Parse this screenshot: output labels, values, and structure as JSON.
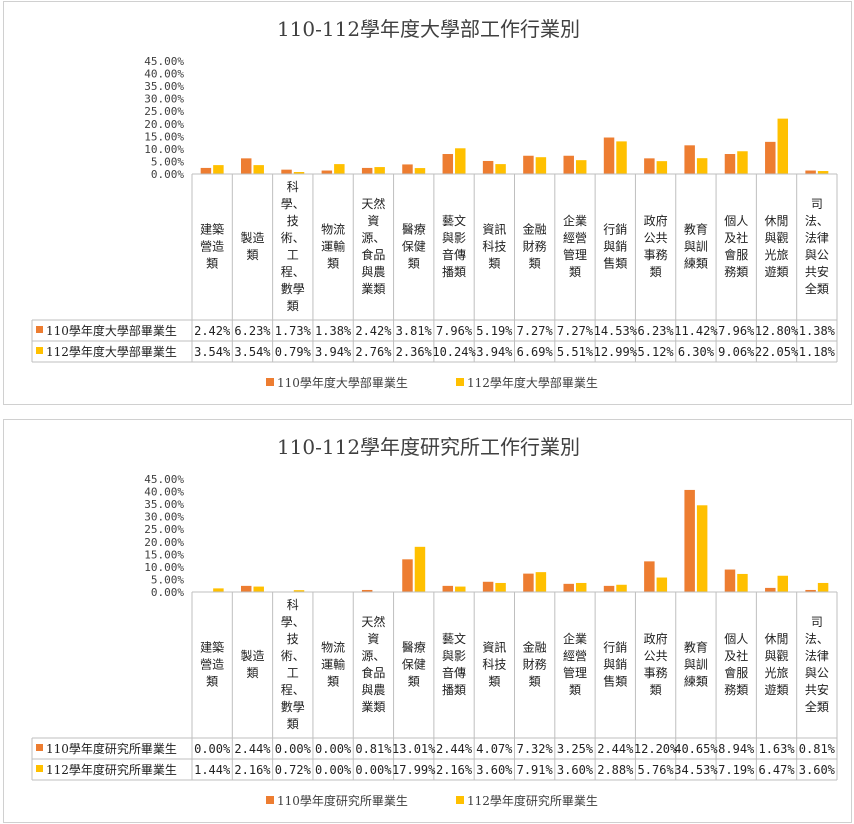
{
  "chart_data": [
    {
      "type": "bar",
      "title": "110-112學年度大學部工作行業別",
      "ylim": [
        0,
        45
      ],
      "yticks": [
        "0.00%",
        "5.00%",
        "10.00%",
        "15.00%",
        "20.00%",
        "25.00%",
        "30.00%",
        "35.00%",
        "40.00%",
        "45.00%"
      ],
      "categories": [
        "建築營造類",
        "製造類",
        "科學、技術、工程、數學類",
        "物流運輸類",
        "天然資源、食品與農業類",
        "醫療保健類",
        "藝文與影音傳播類",
        "資訊科技類",
        "金融財務類",
        "企業經營管理類",
        "行銷與銷售類",
        "政府公共事務類",
        "教育與訓練類",
        "個人及社會服務類",
        "休閒與觀光旅遊類",
        "司法、法律與公共安全類"
      ],
      "series": [
        {
          "name": "110學年度大學部畢業生",
          "color": "#ED7D31",
          "values": [
            2.42,
            6.23,
            1.73,
            1.38,
            2.42,
            3.81,
            7.96,
            5.19,
            7.27,
            7.27,
            14.53,
            6.23,
            11.42,
            7.96,
            12.8,
            1.38
          ],
          "labels": [
            "2.42%",
            "6.23%",
            "1.73%",
            "1.38%",
            "2.42%",
            "3.81%",
            "7.96%",
            "5.19%",
            "7.27%",
            "7.27%",
            "14.53%",
            "6.23%",
            "11.42%",
            "7.96%",
            "12.80%",
            "1.38%"
          ]
        },
        {
          "name": "112學年度大學部畢業生",
          "color": "#FFC000",
          "values": [
            3.54,
            3.54,
            0.79,
            3.94,
            2.76,
            2.36,
            10.24,
            3.94,
            6.69,
            5.51,
            12.99,
            5.12,
            6.3,
            9.06,
            22.05,
            1.18
          ],
          "labels": [
            "3.54%",
            "3.54%",
            "0.79%",
            "3.94%",
            "2.76%",
            "2.36%",
            "10.24%",
            "3.94%",
            "6.69%",
            "5.51%",
            "12.99%",
            "5.12%",
            "6.30%",
            "9.06%",
            "22.05%",
            "1.18%"
          ]
        }
      ]
    },
    {
      "type": "bar",
      "title": "110-112學年度研究所工作行業別",
      "ylim": [
        0,
        45
      ],
      "yticks": [
        "0.00%",
        "5.00%",
        "10.00%",
        "15.00%",
        "20.00%",
        "25.00%",
        "30.00%",
        "35.00%",
        "40.00%",
        "45.00%"
      ],
      "categories": [
        "建築營造類",
        "製造類",
        "科學、技術、工程、數學類",
        "物流運輸類",
        "天然資源、食品與農業類",
        "醫療保健類",
        "藝文與影音傳播類",
        "資訊科技類",
        "金融財務類",
        "企業經營管理類",
        "行銷與銷售類",
        "政府公共事務類",
        "教育與訓練類",
        "個人及社會服務類",
        "休閒與觀光旅遊類",
        "司法、法律與公共安全類"
      ],
      "series": [
        {
          "name": "110學年度研究所畢業生",
          "color": "#ED7D31",
          "values": [
            0.0,
            2.44,
            0.0,
            0.0,
            0.81,
            13.01,
            2.44,
            4.07,
            7.32,
            3.25,
            2.44,
            12.2,
            40.65,
            8.94,
            1.63,
            0.81
          ],
          "labels": [
            "0.00%",
            "2.44%",
            "0.00%",
            "0.00%",
            "0.81%",
            "13.01%",
            "2.44%",
            "4.07%",
            "7.32%",
            "3.25%",
            "2.44%",
            "12.20%",
            "40.65%",
            "8.94%",
            "1.63%",
            "0.81%"
          ]
        },
        {
          "name": "112學年度研究所畢業生",
          "color": "#FFC000",
          "values": [
            1.44,
            2.16,
            0.72,
            0.0,
            0.0,
            17.99,
            2.16,
            3.6,
            7.91,
            3.6,
            2.88,
            5.76,
            34.53,
            7.19,
            6.47,
            3.6
          ],
          "labels": [
            "1.44%",
            "2.16%",
            "0.72%",
            "0.00%",
            "0.00%",
            "17.99%",
            "2.16%",
            "3.60%",
            "7.91%",
            "3.60%",
            "2.88%",
            "5.76%",
            "34.53%",
            "7.19%",
            "6.47%",
            "3.60%"
          ]
        }
      ]
    }
  ]
}
